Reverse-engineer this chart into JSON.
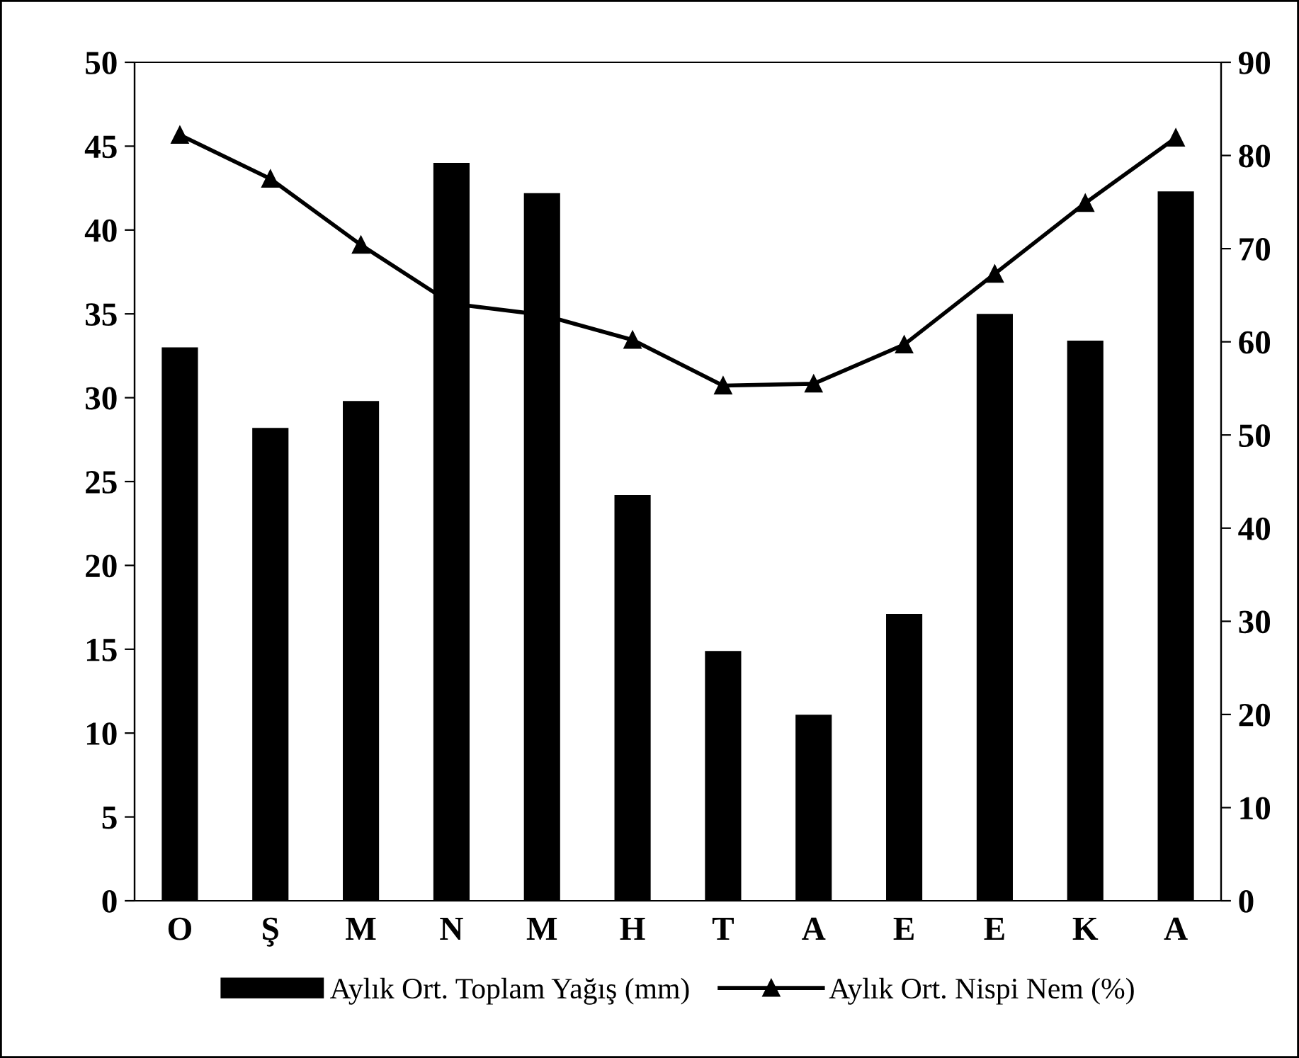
{
  "chart_data": {
    "type": "bar",
    "categories": [
      "O",
      "Ş",
      "M",
      "N",
      "M",
      "H",
      "T",
      "A",
      "E",
      "E",
      "K",
      "A"
    ],
    "series": [
      {
        "name": "Aylık Ort. Toplam Yağış (mm)",
        "color": "#000000",
        "values": [
          33.0,
          28.2,
          29.8,
          44.0,
          42.2,
          24.2,
          14.9,
          11.1,
          17.1,
          35.0,
          33.4,
          42.3
        ]
      },
      {
        "name": "Aylık Ort. Nispi Nem (%)",
        "type": "line",
        "axis": "y2",
        "color": "#000000",
        "marker": "triangle",
        "values": [
          82.2,
          77.5,
          70.4,
          64.1,
          62.9,
          60.2,
          55.3,
          55.5,
          59.7,
          67.3,
          74.9,
          81.9
        ]
      }
    ],
    "ylim": [
      0,
      50
    ],
    "yticks": [
      0,
      5,
      10,
      15,
      20,
      25,
      30,
      35,
      40,
      45,
      50
    ],
    "y2lim": [
      0,
      90
    ],
    "y2ticks": [
      0,
      10,
      20,
      30,
      40,
      50,
      60,
      70,
      80,
      90
    ],
    "grid": false,
    "legend": "bottom"
  }
}
